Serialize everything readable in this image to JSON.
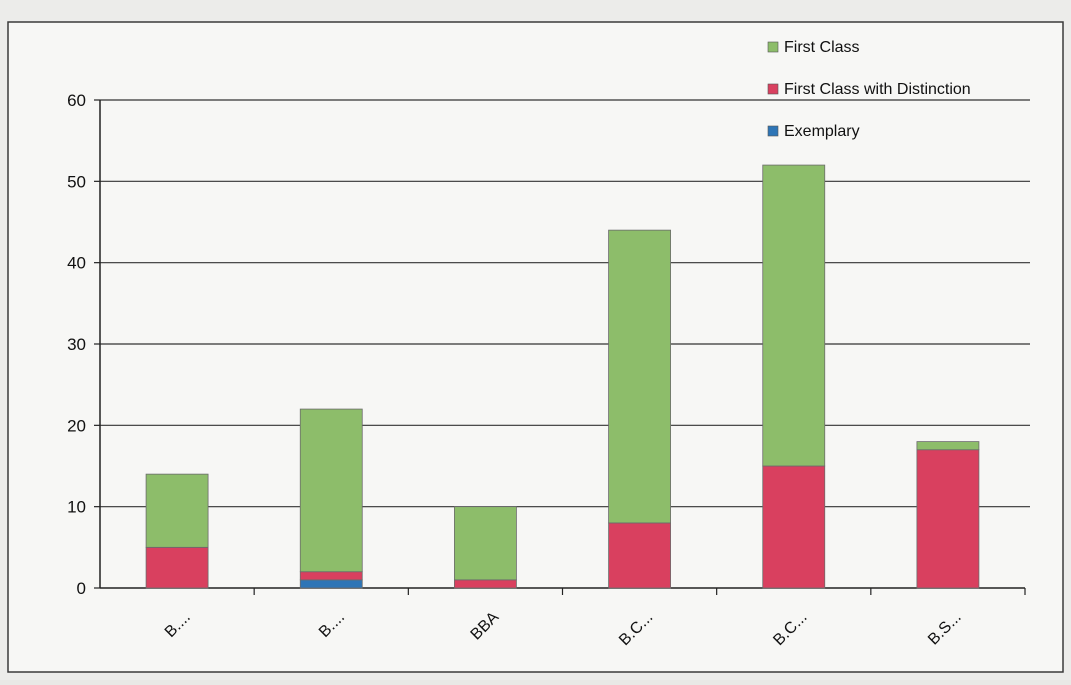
{
  "chart_data": {
    "type": "bar",
    "stacked": true,
    "categories": [
      "B....",
      "B....",
      "BBA",
      "B.C...",
      "B.C...",
      "B.S..."
    ],
    "series": [
      {
        "name": "Exemplary",
        "color": "#2e75b6",
        "values": [
          0,
          1,
          0,
          0,
          0,
          0
        ]
      },
      {
        "name": "First Class with Distinction",
        "color": "#d9405f",
        "values": [
          5,
          1,
          1,
          8,
          15,
          17
        ]
      },
      {
        "name": "First Class",
        "color": "#8dbd6a",
        "values": [
          9,
          20,
          9,
          36,
          37,
          1
        ]
      }
    ],
    "yticks": [
      "0",
      "10",
      "20",
      "30",
      "40",
      "50",
      "60"
    ],
    "ylim": [
      0,
      60
    ],
    "grid": true,
    "legend_position": "top-right"
  }
}
